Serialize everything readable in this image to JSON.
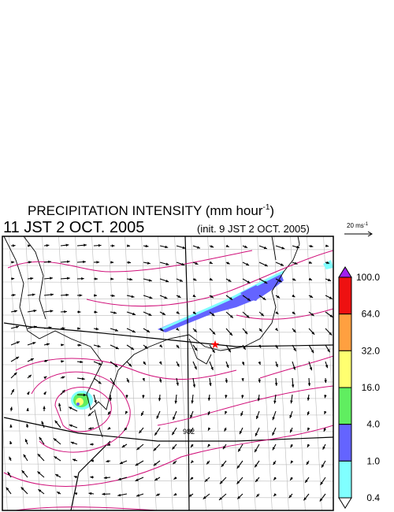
{
  "header": {
    "title": {
      "text": "PRECIPITATION INTENSITY (mm hour",
      "superscript": "-1",
      "close": ")"
    },
    "valid_time": "11 JST 2 OCT. 2005",
    "init_time": "(init. 9 JST 2 OCT. 2005)"
  },
  "wind_reference": {
    "label": "20 ms",
    "superscript": "-1"
  },
  "colorbar": {
    "labels": [
      "100.0",
      "64.0",
      "32.0",
      "16.0",
      "4.0",
      "1.0",
      "0.4"
    ],
    "over_color": "#a020f0",
    "under_color": "#ffffff",
    "colors": [
      "#ee1111",
      "#ffa040",
      "#ffff70",
      "#60ee60",
      "#6464ff",
      "#80ffff"
    ]
  },
  "map": {
    "contour_label": "982"
  }
}
